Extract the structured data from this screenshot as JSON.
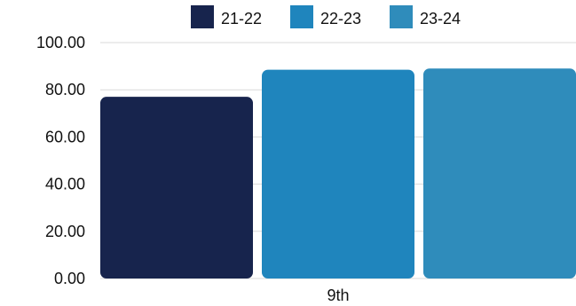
{
  "chart_data": {
    "type": "bar",
    "categories": [
      "9th"
    ],
    "series": [
      {
        "name": "21-22",
        "values": [
          77
        ],
        "color": "#17244d"
      },
      {
        "name": "22-23",
        "values": [
          88.5
        ],
        "color": "#1f85bd"
      },
      {
        "name": "23-24",
        "values": [
          89
        ],
        "color": "#2f8cbb"
      }
    ],
    "title": "",
    "xlabel": "",
    "ylabel": "",
    "ylim": [
      0,
      100
    ],
    "yticks": [
      "0.00",
      "20.00",
      "40.00",
      "60.00",
      "80.00",
      "100.00"
    ],
    "grid": true,
    "legend_position": "top"
  }
}
